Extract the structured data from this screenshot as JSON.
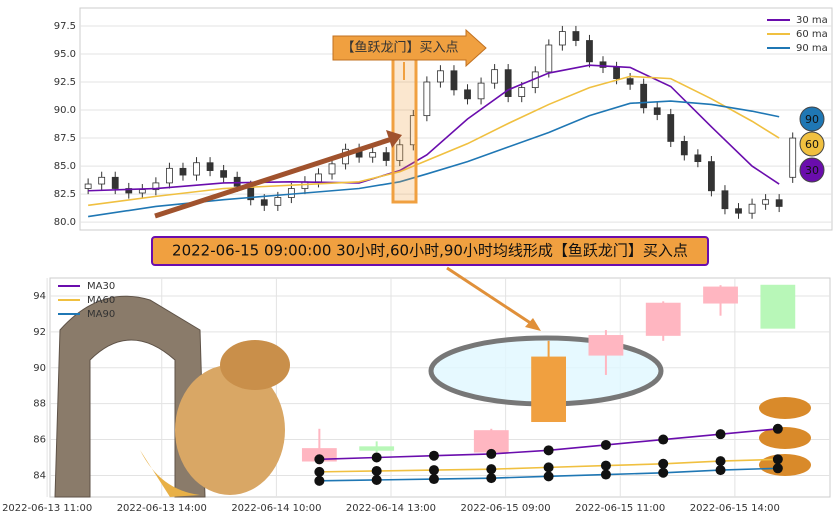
{
  "chart_data": [
    {
      "type": "candlestick",
      "annotation": "【鱼跃龙门】买入点",
      "xlim": [
        -0.6,
        54.9
      ],
      "ylim": [
        79.3,
        99.1
      ],
      "yticks": [
        {
          "value": 80,
          "label": "80.0"
        },
        82.5,
        {
          "value": 85,
          "label": "85.0"
        },
        87.5,
        {
          "value": 90,
          "label": "90.0"
        },
        92.5,
        {
          "value": 95,
          "label": "95.0"
        },
        97.5
      ],
      "grid": true,
      "legend": "upper right",
      "up_color": "#ffffff",
      "down_color": "#333333",
      "open": [
        83.0,
        83.4,
        84.0,
        83.0,
        82.6,
        82.9,
        83.5,
        84.8,
        84.2,
        85.3,
        84.6,
        84.0,
        83.2,
        82.0,
        81.5,
        82.2,
        83.0,
        83.6,
        84.3,
        85.2,
        86.5,
        85.8,
        86.2,
        85.5,
        86.9,
        89.5,
        92.5,
        93.5,
        91.8,
        91.0,
        92.4,
        93.6,
        91.2,
        92.0,
        93.4,
        95.8,
        97.0,
        96.2,
        94.3,
        93.8,
        92.8,
        92.3,
        90.2,
        89.6,
        87.2,
        86.0,
        85.4,
        82.8,
        81.2,
        80.8,
        81.6,
        82.0,
        84.0
      ],
      "close": [
        83.4,
        84.0,
        83.0,
        82.6,
        82.9,
        83.5,
        84.8,
        84.2,
        85.3,
        84.6,
        84.0,
        83.2,
        82.0,
        81.5,
        82.2,
        83.0,
        83.6,
        84.3,
        85.2,
        86.5,
        85.8,
        86.2,
        85.5,
        86.9,
        89.5,
        92.5,
        93.5,
        91.8,
        91.0,
        92.4,
        93.6,
        91.2,
        92.0,
        93.4,
        95.8,
        97.0,
        96.2,
        94.3,
        93.8,
        92.8,
        92.3,
        90.2,
        89.6,
        87.2,
        86.0,
        85.4,
        82.8,
        81.2,
        80.8,
        81.6,
        82.0,
        81.4,
        87.5
      ],
      "high": [
        83.9,
        84.5,
        84.5,
        83.5,
        83.4,
        84.0,
        85.3,
        85.3,
        85.8,
        85.8,
        85.1,
        84.5,
        83.7,
        82.5,
        82.7,
        83.5,
        84.1,
        84.8,
        85.7,
        87.0,
        87.0,
        86.7,
        86.7,
        87.4,
        90.0,
        93.0,
        94.0,
        94.0,
        92.3,
        92.9,
        94.1,
        94.1,
        92.5,
        93.9,
        96.3,
        97.5,
        97.5,
        96.7,
        94.8,
        94.3,
        93.3,
        92.8,
        90.7,
        90.1,
        87.7,
        86.5,
        85.9,
        83.3,
        81.7,
        82.1,
        82.5,
        82.5,
        88.0
      ],
      "low": [
        82.5,
        82.9,
        82.5,
        82.1,
        82.1,
        82.4,
        83.0,
        83.7,
        83.7,
        84.1,
        83.5,
        82.7,
        81.5,
        81.0,
        81.0,
        81.7,
        82.5,
        83.1,
        83.8,
        84.7,
        85.3,
        85.3,
        85.0,
        85.0,
        86.4,
        89.0,
        92.0,
        91.3,
        90.5,
        90.5,
        91.9,
        90.7,
        90.7,
        91.5,
        92.9,
        95.3,
        95.7,
        93.8,
        93.3,
        92.3,
        91.8,
        89.7,
        89.1,
        86.7,
        85.5,
        84.9,
        82.3,
        80.7,
        80.3,
        80.3,
        81.1,
        80.9,
        83.5
      ],
      "series": [
        {
          "name": "30 ma",
          "badge": "30",
          "color": "#6a0dad",
          "x": [
            0,
            5,
            10,
            15,
            20,
            23,
            25,
            28,
            31,
            34,
            37,
            40,
            43,
            46,
            49,
            51
          ],
          "values": [
            82.8,
            83.0,
            83.5,
            83.6,
            83.5,
            84.6,
            86.0,
            89.2,
            91.8,
            93.3,
            94.0,
            93.8,
            92.1,
            88.5,
            85.0,
            83.4
          ]
        },
        {
          "name": "60 ma",
          "badge": "60",
          "color": "#f0c040",
          "x": [
            0,
            5,
            10,
            15,
            20,
            23,
            25,
            28,
            31,
            34,
            37,
            40,
            43,
            46,
            49,
            51
          ],
          "values": [
            81.5,
            82.3,
            83.0,
            83.3,
            83.6,
            84.5,
            85.5,
            87.0,
            88.8,
            90.5,
            92.0,
            93.0,
            92.8,
            91.0,
            89.0,
            87.5
          ]
        },
        {
          "name": "90 ma",
          "badge": "90",
          "color": "#1f77b4",
          "x": [
            0,
            5,
            10,
            15,
            20,
            23,
            25,
            28,
            31,
            34,
            37,
            40,
            43,
            46,
            49,
            51
          ],
          "values": [
            80.5,
            81.4,
            82.0,
            82.5,
            83.0,
            83.6,
            84.3,
            85.4,
            86.7,
            88.0,
            89.5,
            90.6,
            90.8,
            90.5,
            89.9,
            89.4
          ]
        }
      ]
    },
    {
      "type": "candlestick",
      "annotation": "2022-06-15 09:00:00 30小时,60小时,90小时均线形成【鱼跃龙门】买入点",
      "xlim": [
        0.05,
        13.66
      ],
      "ylim": [
        82.8,
        95.0
      ],
      "xticks": [
        {
          "value": 0,
          "label": "2022-06-13 11:00"
        },
        {
          "value": 2,
          "label": "2022-06-13 14:00"
        },
        {
          "value": 4,
          "label": "2022-06-14 10:00"
        },
        {
          "value": 6,
          "label": "2022-06-14 13:00"
        },
        {
          "value": 8,
          "label": "2022-06-15 09:00"
        },
        {
          "value": 10,
          "label": "2022-06-15 11:00"
        },
        {
          "value": 12,
          "label": "2022-06-15 14:00"
        }
      ],
      "yticks": [
        84,
        86,
        88,
        90,
        92,
        94
      ],
      "grid": true,
      "legend": "upper left",
      "up_color": "#ffb6c1",
      "down_color": "#b8f7b8",
      "highlight_index": 3,
      "highlight_color": "#f0a040",
      "x": [
        4.75,
        5.75,
        7.75,
        8.75,
        9.75,
        10.75,
        11.75,
        12.75
      ],
      "open": [
        84.8,
        85.6,
        85.3,
        87.0,
        90.7,
        91.8,
        93.6,
        94.6
      ],
      "close": [
        85.5,
        85.4,
        86.5,
        90.6,
        91.8,
        93.6,
        94.5,
        92.2
      ],
      "high": [
        86.6,
        85.9,
        86.6,
        91.5,
        92.1,
        93.7,
        94.6,
        94.6
      ],
      "low": [
        84.6,
        85.3,
        85.2,
        87.0,
        89.6,
        91.5,
        92.9,
        92.2
      ],
      "series": [
        {
          "name": "MA30",
          "color": "#6a0dad",
          "x": [
            4.75,
            5.75,
            6.75,
            7.75,
            8.75,
            9.75,
            10.75,
            11.75,
            12.75
          ],
          "values": [
            84.9,
            85.0,
            85.1,
            85.2,
            85.4,
            85.7,
            86.0,
            86.3,
            86.6
          ]
        },
        {
          "name": "MA60",
          "color": "#f0c040",
          "x": [
            4.75,
            5.75,
            6.75,
            7.75,
            8.75,
            9.75,
            10.75,
            11.75,
            12.75
          ],
          "values": [
            84.2,
            84.25,
            84.3,
            84.35,
            84.45,
            84.55,
            84.65,
            84.8,
            84.9
          ]
        },
        {
          "name": "MA90",
          "color": "#1f77b4",
          "x": [
            4.75,
            5.75,
            6.75,
            7.75,
            8.75,
            9.75,
            10.75,
            11.75,
            12.75
          ],
          "values": [
            83.7,
            83.75,
            83.8,
            83.85,
            83.95,
            84.05,
            84.15,
            84.3,
            84.4
          ]
        }
      ]
    }
  ]
}
